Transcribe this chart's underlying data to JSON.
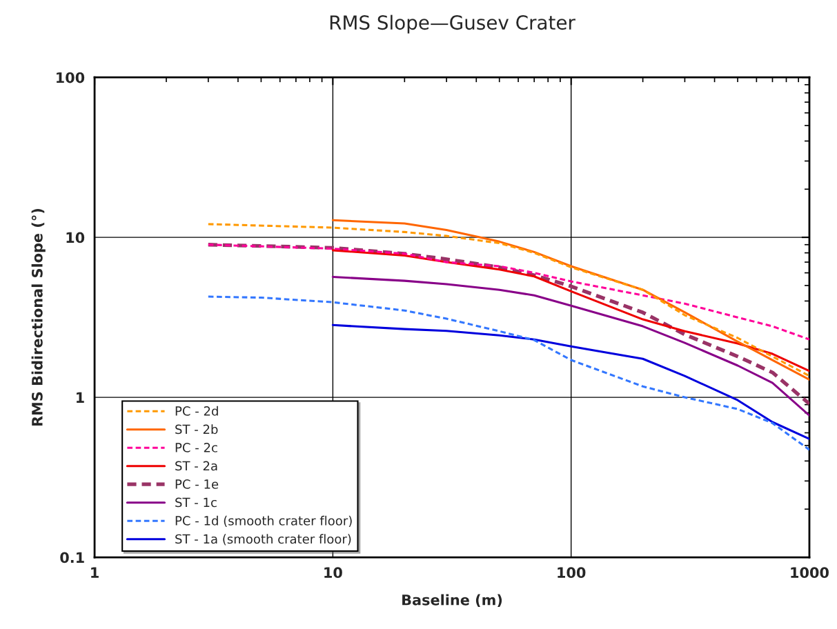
{
  "chart_data": {
    "type": "line",
    "title": "RMS Slope—Gusev Crater",
    "xlabel": "Baseline (m)",
    "ylabel": "RMS Bidirectional Slope (°)",
    "log": "xy",
    "xlim": [
      1,
      1000
    ],
    "ylim": [
      0.1,
      100
    ],
    "xticks": [
      1,
      10,
      100,
      1000
    ],
    "yticks": [
      0.1,
      1,
      10,
      100
    ],
    "grid": true,
    "legend": "bottom left",
    "series": [
      {
        "name": "PC - 2d",
        "color": "#ff9900",
        "line_style": "dashed",
        "x": [
          3,
          10,
          20,
          30,
          50,
          70,
          100,
          200,
          300,
          500,
          700,
          1000
        ],
        "values": [
          12.1,
          11.5,
          10.8,
          10.2,
          9.2,
          8.0,
          6.5,
          4.7,
          3.26,
          2.35,
          1.8,
          1.36
        ]
      },
      {
        "name": "ST - 2b",
        "color": "#ff6600",
        "line_style": "solid",
        "x": [
          10,
          20,
          30,
          50,
          70,
          100,
          200,
          300,
          500,
          700,
          1000
        ],
        "values": [
          12.8,
          12.2,
          11.1,
          9.4,
          8.1,
          6.6,
          4.7,
          3.4,
          2.23,
          1.71,
          1.29
        ]
      },
      {
        "name": "PC - 2c",
        "color": "#ff0099",
        "line_style": "dashed",
        "x": [
          3,
          10,
          20,
          30,
          50,
          70,
          100,
          200,
          300,
          500,
          700,
          1000
        ],
        "values": [
          9.0,
          8.5,
          7.9,
          7.0,
          6.6,
          6.0,
          5.3,
          4.34,
          3.85,
          3.16,
          2.78,
          2.3
        ]
      },
      {
        "name": "ST - 2a",
        "color": "#ee0000",
        "line_style": "solid",
        "x": [
          10,
          20,
          30,
          50,
          70,
          100,
          200,
          300,
          500,
          700,
          1000
        ],
        "values": [
          8.3,
          7.7,
          7.0,
          6.3,
          5.7,
          4.6,
          3.07,
          2.59,
          2.17,
          1.87,
          1.46
        ]
      },
      {
        "name": "PC - 1e",
        "color": "#993366",
        "line_style": "dashed",
        "x": [
          3,
          10,
          20,
          30,
          50,
          70,
          100,
          200,
          300,
          500,
          700,
          1000
        ],
        "values": [
          9.0,
          8.6,
          7.9,
          7.3,
          6.5,
          5.8,
          4.94,
          3.39,
          2.47,
          1.8,
          1.43,
          0.91
        ]
      },
      {
        "name": "ST - 1c",
        "color": "#880088",
        "line_style": "solid",
        "x": [
          10,
          20,
          30,
          50,
          70,
          100,
          200,
          300,
          500,
          700,
          1000
        ],
        "values": [
          5.66,
          5.35,
          5.1,
          4.7,
          4.34,
          3.74,
          2.78,
          2.19,
          1.58,
          1.23,
          0.77
        ]
      },
      {
        "name": "PC - 1d (smooth crater floor)",
        "color": "#3377ff",
        "line_style": "dashed",
        "x": [
          3,
          5,
          10,
          20,
          30,
          50,
          70,
          100,
          200,
          300,
          500,
          700,
          1000
        ],
        "values": [
          4.26,
          4.2,
          3.93,
          3.49,
          3.1,
          2.59,
          2.28,
          1.71,
          1.17,
          1.0,
          0.845,
          0.69,
          0.47
        ]
      },
      {
        "name": "ST - 1a (smooth crater floor)",
        "color": "#0000dd",
        "line_style": "solid",
        "x": [
          10,
          20,
          30,
          50,
          70,
          100,
          200,
          300,
          500,
          700,
          1000
        ],
        "values": [
          2.83,
          2.67,
          2.6,
          2.44,
          2.3,
          2.08,
          1.74,
          1.36,
          0.96,
          0.7,
          0.55
        ]
      }
    ]
  }
}
